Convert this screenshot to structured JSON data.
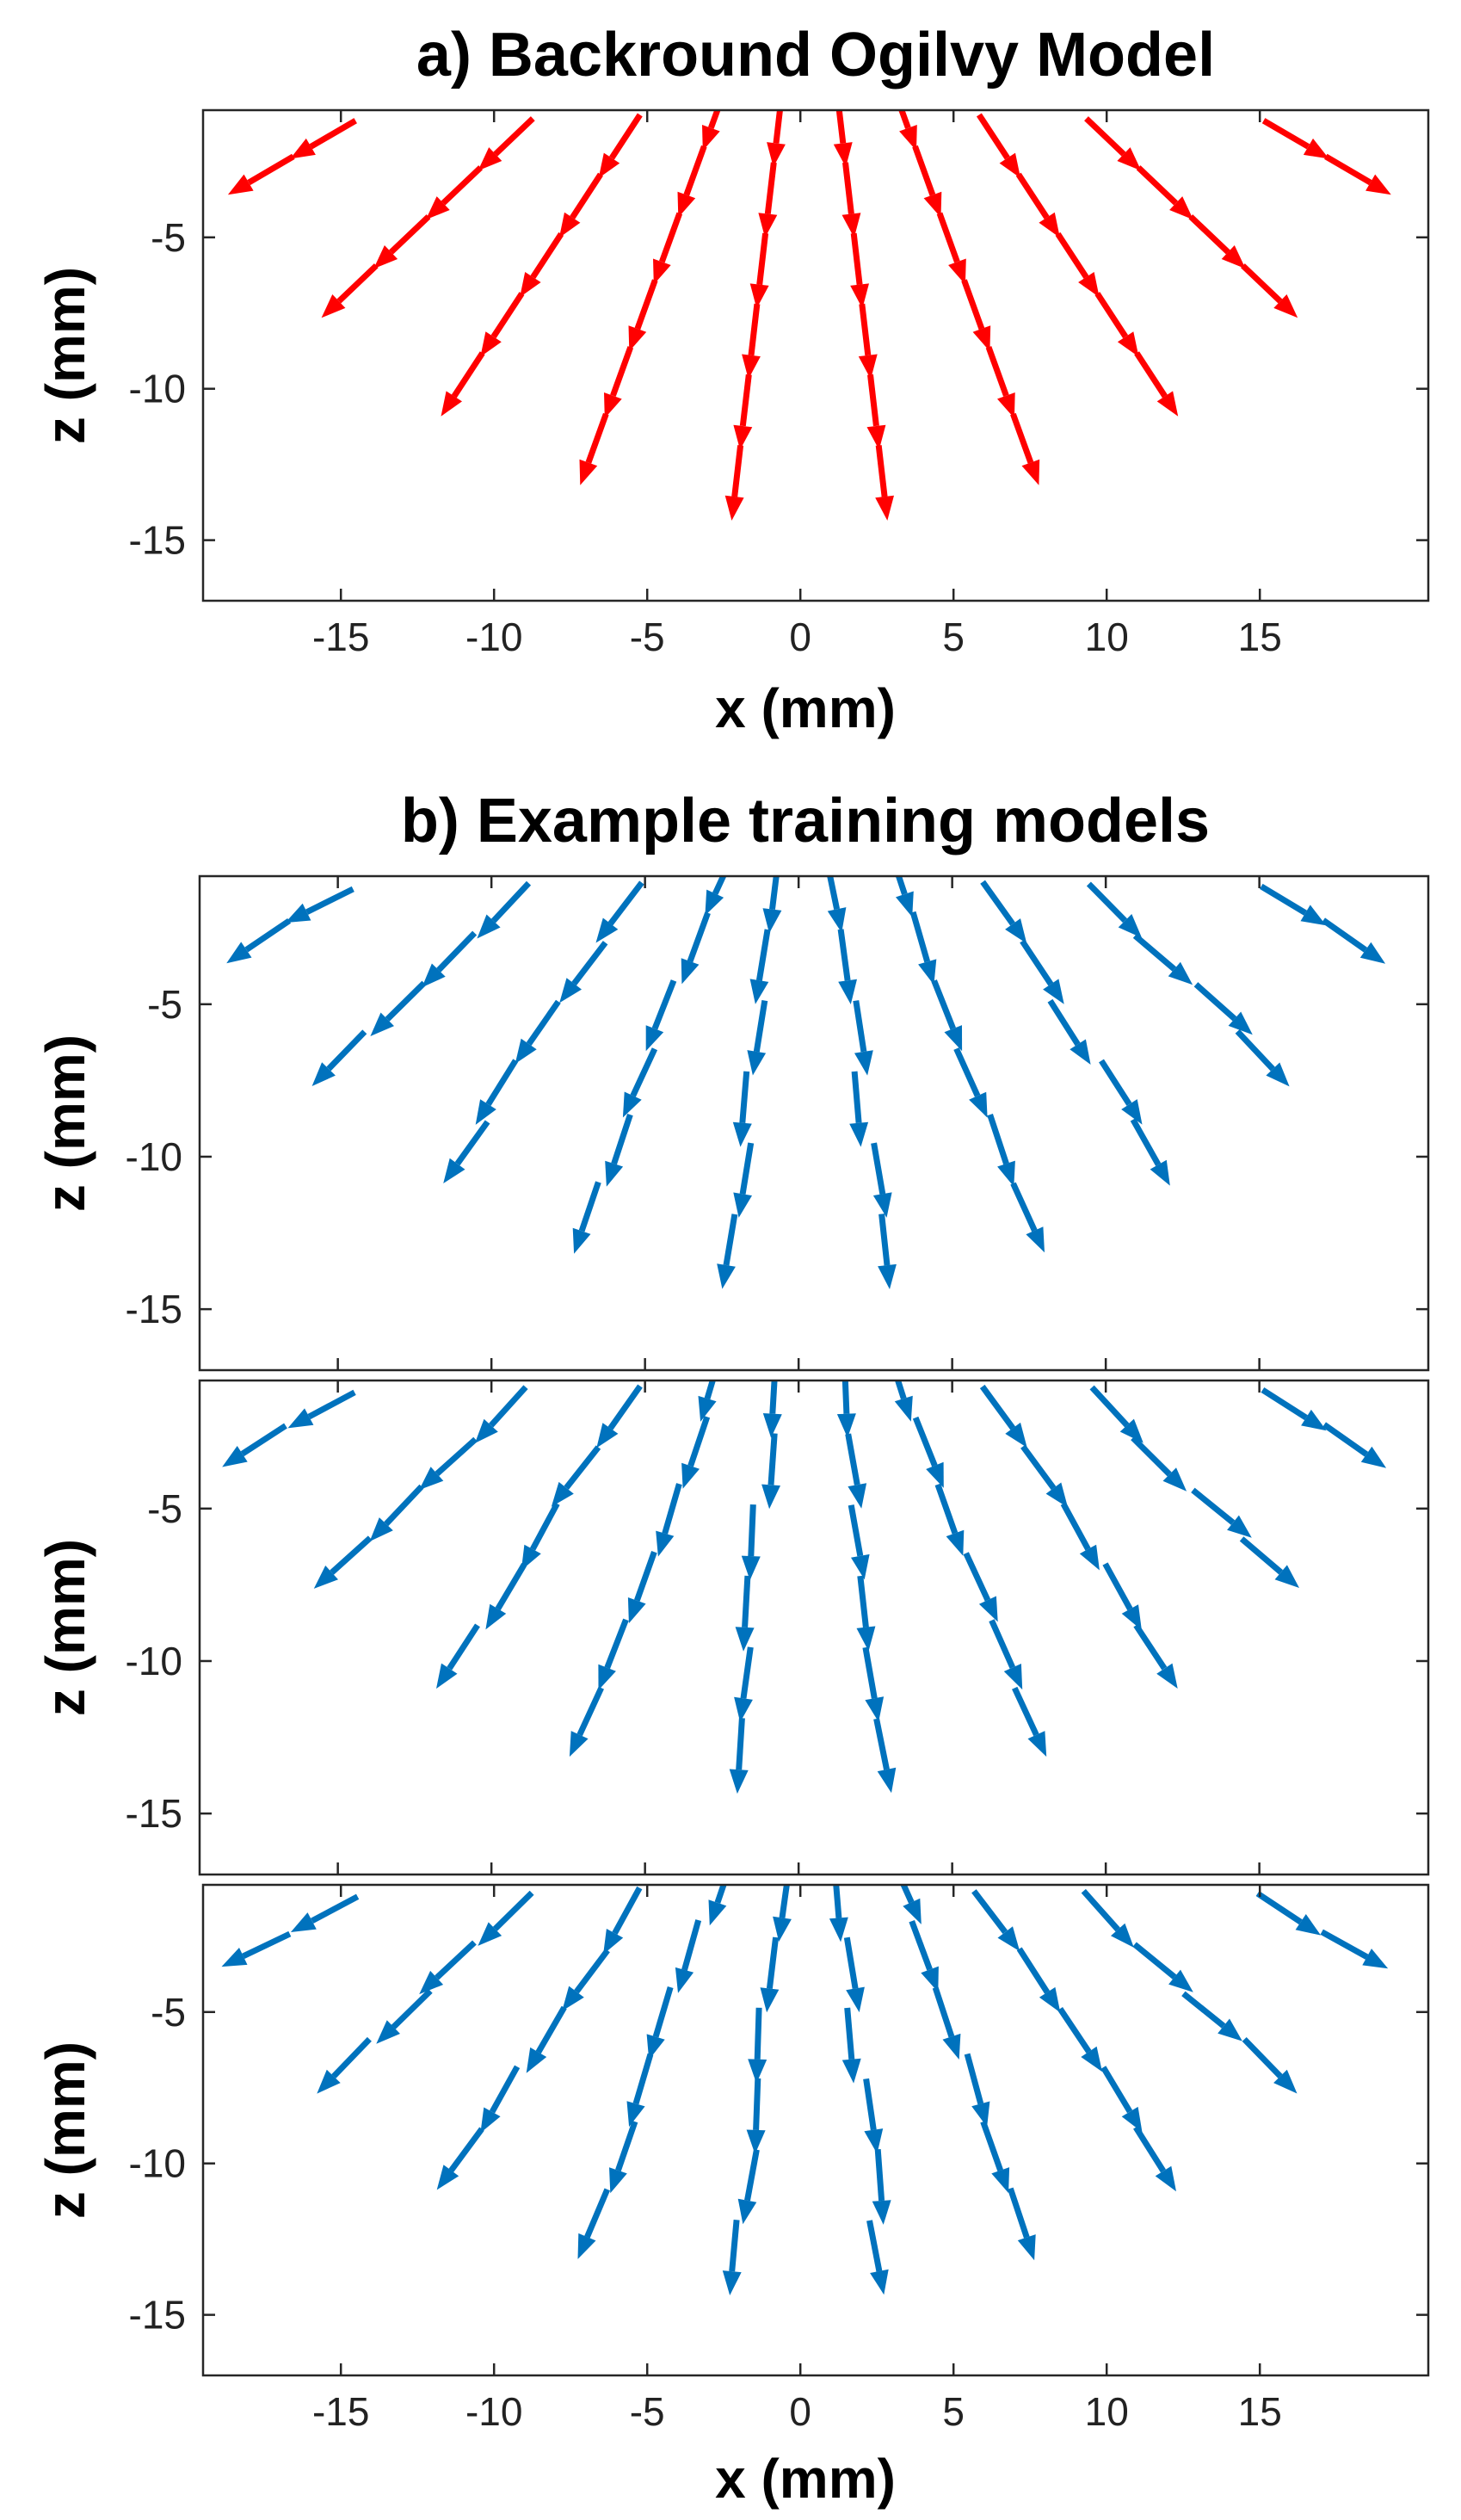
{
  "chart_data": [
    {
      "type": "quiver",
      "title": "a) Backround Ogilvy Model",
      "xlabel": "x (mm)",
      "ylabel": "z (mm)",
      "xlim": [
        -19.5,
        20.5
      ],
      "ylim": [
        -17,
        -0.8
      ],
      "x_ticks": [
        -15,
        -10,
        -5,
        0,
        5,
        10,
        15
      ],
      "y_ticks": [
        -5,
        -10,
        -15
      ],
      "tick_labels_x": [
        "-15",
        "-10",
        "-5",
        "0",
        "5",
        "10",
        "15"
      ],
      "tick_labels_y": [
        "-5",
        "-10",
        "-15"
      ],
      "arrow_color": "#ff0000",
      "field": "radial fan of unit vectors diverging from a source above the surface near x = 0",
      "variant": 0
    },
    {
      "type": "quiver",
      "title": "b) Example training models",
      "xlabel": "",
      "ylabel": "z (mm)",
      "xlim": [
        -19.5,
        20.5
      ],
      "ylim": [
        -17,
        -0.8
      ],
      "x_ticks": [
        -15,
        -10,
        -5,
        0,
        5,
        10,
        15
      ],
      "y_ticks": [
        -5,
        -10,
        -15
      ],
      "tick_labels_x": [],
      "tick_labels_y": [
        "-5",
        "-10",
        "-15"
      ],
      "arrow_color": "#0072bd",
      "field": "perturbed radial fan of unit vectors",
      "variant": 1
    },
    {
      "type": "quiver",
      "title": "",
      "xlabel": "",
      "ylabel": "z (mm)",
      "xlim": [
        -19.5,
        20.5
      ],
      "ylim": [
        -17,
        -0.8
      ],
      "x_ticks": [
        -15,
        -10,
        -5,
        0,
        5,
        10,
        15
      ],
      "y_ticks": [
        -5,
        -10,
        -15
      ],
      "tick_labels_x": [],
      "tick_labels_y": [
        "-5",
        "-10",
        "-15"
      ],
      "arrow_color": "#0072bd",
      "field": "perturbed radial fan of unit vectors",
      "variant": 2
    },
    {
      "type": "quiver",
      "title": "",
      "xlabel": "x (mm)",
      "ylabel": "z (mm)",
      "xlim": [
        -19.5,
        20.5
      ],
      "ylim": [
        -17,
        -0.8
      ],
      "x_ticks": [
        -15,
        -10,
        -5,
        0,
        5,
        10,
        15
      ],
      "y_ticks": [
        -5,
        -10,
        -15
      ],
      "tick_labels_x": [
        "-15",
        "-10",
        "-5",
        "0",
        "5",
        "10",
        "15"
      ],
      "tick_labels_y": [
        "-5",
        "-10",
        "-15"
      ],
      "arrow_color": "#0072bd",
      "field": "perturbed radial fan of unit vectors",
      "variant": 3
    }
  ]
}
